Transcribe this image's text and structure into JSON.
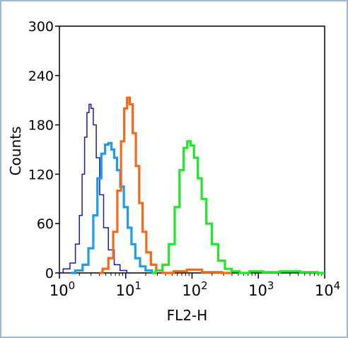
{
  "chart_data": {
    "type": "line",
    "xlabel": "FL2-H",
    "ylabel": "Counts",
    "x_scale": "log",
    "xlim": [
      1,
      10000
    ],
    "ylim": [
      0,
      300
    ],
    "x_ticks": [
      {
        "value": 1,
        "base": "10",
        "exp": "0"
      },
      {
        "value": 10,
        "base": "10",
        "exp": "1"
      },
      {
        "value": 100,
        "base": "10",
        "exp": "2"
      },
      {
        "value": 1000,
        "base": "10",
        "exp": "3"
      },
      {
        "value": 10000,
        "base": "10",
        "exp": "4"
      }
    ],
    "y_ticks": [
      0,
      60,
      120,
      180,
      240,
      300
    ],
    "grid": false,
    "series": [
      {
        "color": "#1a1aa8",
        "points": [
          [
            1.0,
            0
          ],
          [
            1.3,
            5
          ],
          [
            1.6,
            12
          ],
          [
            1.9,
            35
          ],
          [
            2.1,
            70
          ],
          [
            2.3,
            120
          ],
          [
            2.5,
            165
          ],
          [
            2.7,
            195
          ],
          [
            2.9,
            205
          ],
          [
            3.1,
            200
          ],
          [
            3.4,
            180
          ],
          [
            3.8,
            140
          ],
          [
            4.3,
            95
          ],
          [
            5.0,
            55
          ],
          [
            6.0,
            28
          ],
          [
            7.5,
            10
          ],
          [
            9.0,
            3
          ],
          [
            12,
            0
          ]
        ]
      },
      {
        "color": "#1f9bea",
        "points": [
          [
            1.5,
            0
          ],
          [
            2.0,
            3
          ],
          [
            2.5,
            10
          ],
          [
            3.0,
            30
          ],
          [
            3.5,
            70
          ],
          [
            4.0,
            115
          ],
          [
            4.6,
            145
          ],
          [
            5.2,
            156
          ],
          [
            5.8,
            158
          ],
          [
            6.4,
            150
          ],
          [
            7.0,
            140
          ],
          [
            7.8,
            125
          ],
          [
            8.8,
            105
          ],
          [
            10,
            80
          ],
          [
            11.5,
            55
          ],
          [
            13,
            35
          ],
          [
            15,
            18
          ],
          [
            18,
            8
          ],
          [
            22,
            3
          ],
          [
            28,
            0
          ]
        ]
      },
      {
        "color": "#f06a1a",
        "points": [
          [
            4.0,
            0
          ],
          [
            5.0,
            5
          ],
          [
            6.0,
            18
          ],
          [
            7.0,
            50
          ],
          [
            8.0,
            100
          ],
          [
            9.0,
            160
          ],
          [
            10.0,
            200
          ],
          [
            11.0,
            213
          ],
          [
            12.0,
            205
          ],
          [
            13.5,
            170
          ],
          [
            15,
            130
          ],
          [
            17,
            85
          ],
          [
            19,
            50
          ],
          [
            22,
            25
          ],
          [
            26,
            10
          ],
          [
            32,
            3
          ],
          [
            40,
            0
          ],
          [
            70,
            2
          ],
          [
            100,
            4
          ],
          [
            200,
            1
          ],
          [
            400,
            0
          ]
        ]
      },
      {
        "color": "#22e62a",
        "points": [
          [
            25,
            0
          ],
          [
            32,
            3
          ],
          [
            40,
            10
          ],
          [
            50,
            35
          ],
          [
            60,
            80
          ],
          [
            70,
            125
          ],
          [
            80,
            152
          ],
          [
            90,
            160
          ],
          [
            100,
            155
          ],
          [
            115,
            140
          ],
          [
            130,
            115
          ],
          [
            150,
            90
          ],
          [
            180,
            60
          ],
          [
            220,
            35
          ],
          [
            280,
            15
          ],
          [
            350,
            5
          ],
          [
            450,
            2
          ],
          [
            600,
            0
          ],
          [
            900,
            2
          ],
          [
            1500,
            1
          ],
          [
            3000,
            2
          ],
          [
            6000,
            1
          ],
          [
            10000,
            0
          ]
        ]
      }
    ]
  }
}
